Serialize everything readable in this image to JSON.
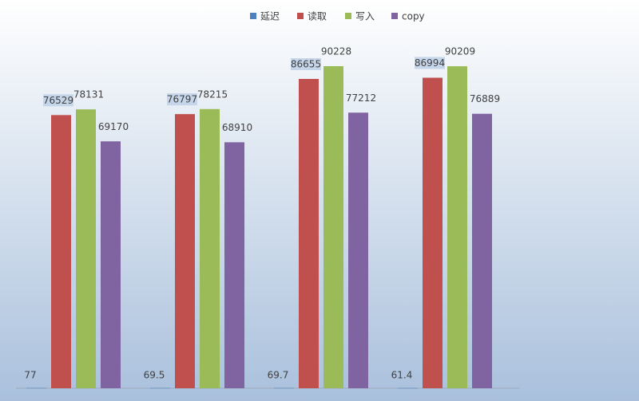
{
  "chart_data": {
    "type": "bar",
    "categories": [
      null,
      null,
      null,
      null
    ],
    "series": [
      {
        "name": "延迟",
        "color": "#4f81bd",
        "values": [
          77,
          69.5,
          69.7,
          61.4
        ]
      },
      {
        "name": "读取",
        "color": "#c0504d",
        "values": [
          76529,
          76797,
          86655,
          86994
        ]
      },
      {
        "name": "写入",
        "color": "#9bbb59",
        "values": [
          78131,
          78215,
          90228,
          90209
        ]
      },
      {
        "name": "copy",
        "color": "#8064a2",
        "values": [
          69170,
          68910,
          77212,
          76889
        ]
      }
    ]
  }
}
